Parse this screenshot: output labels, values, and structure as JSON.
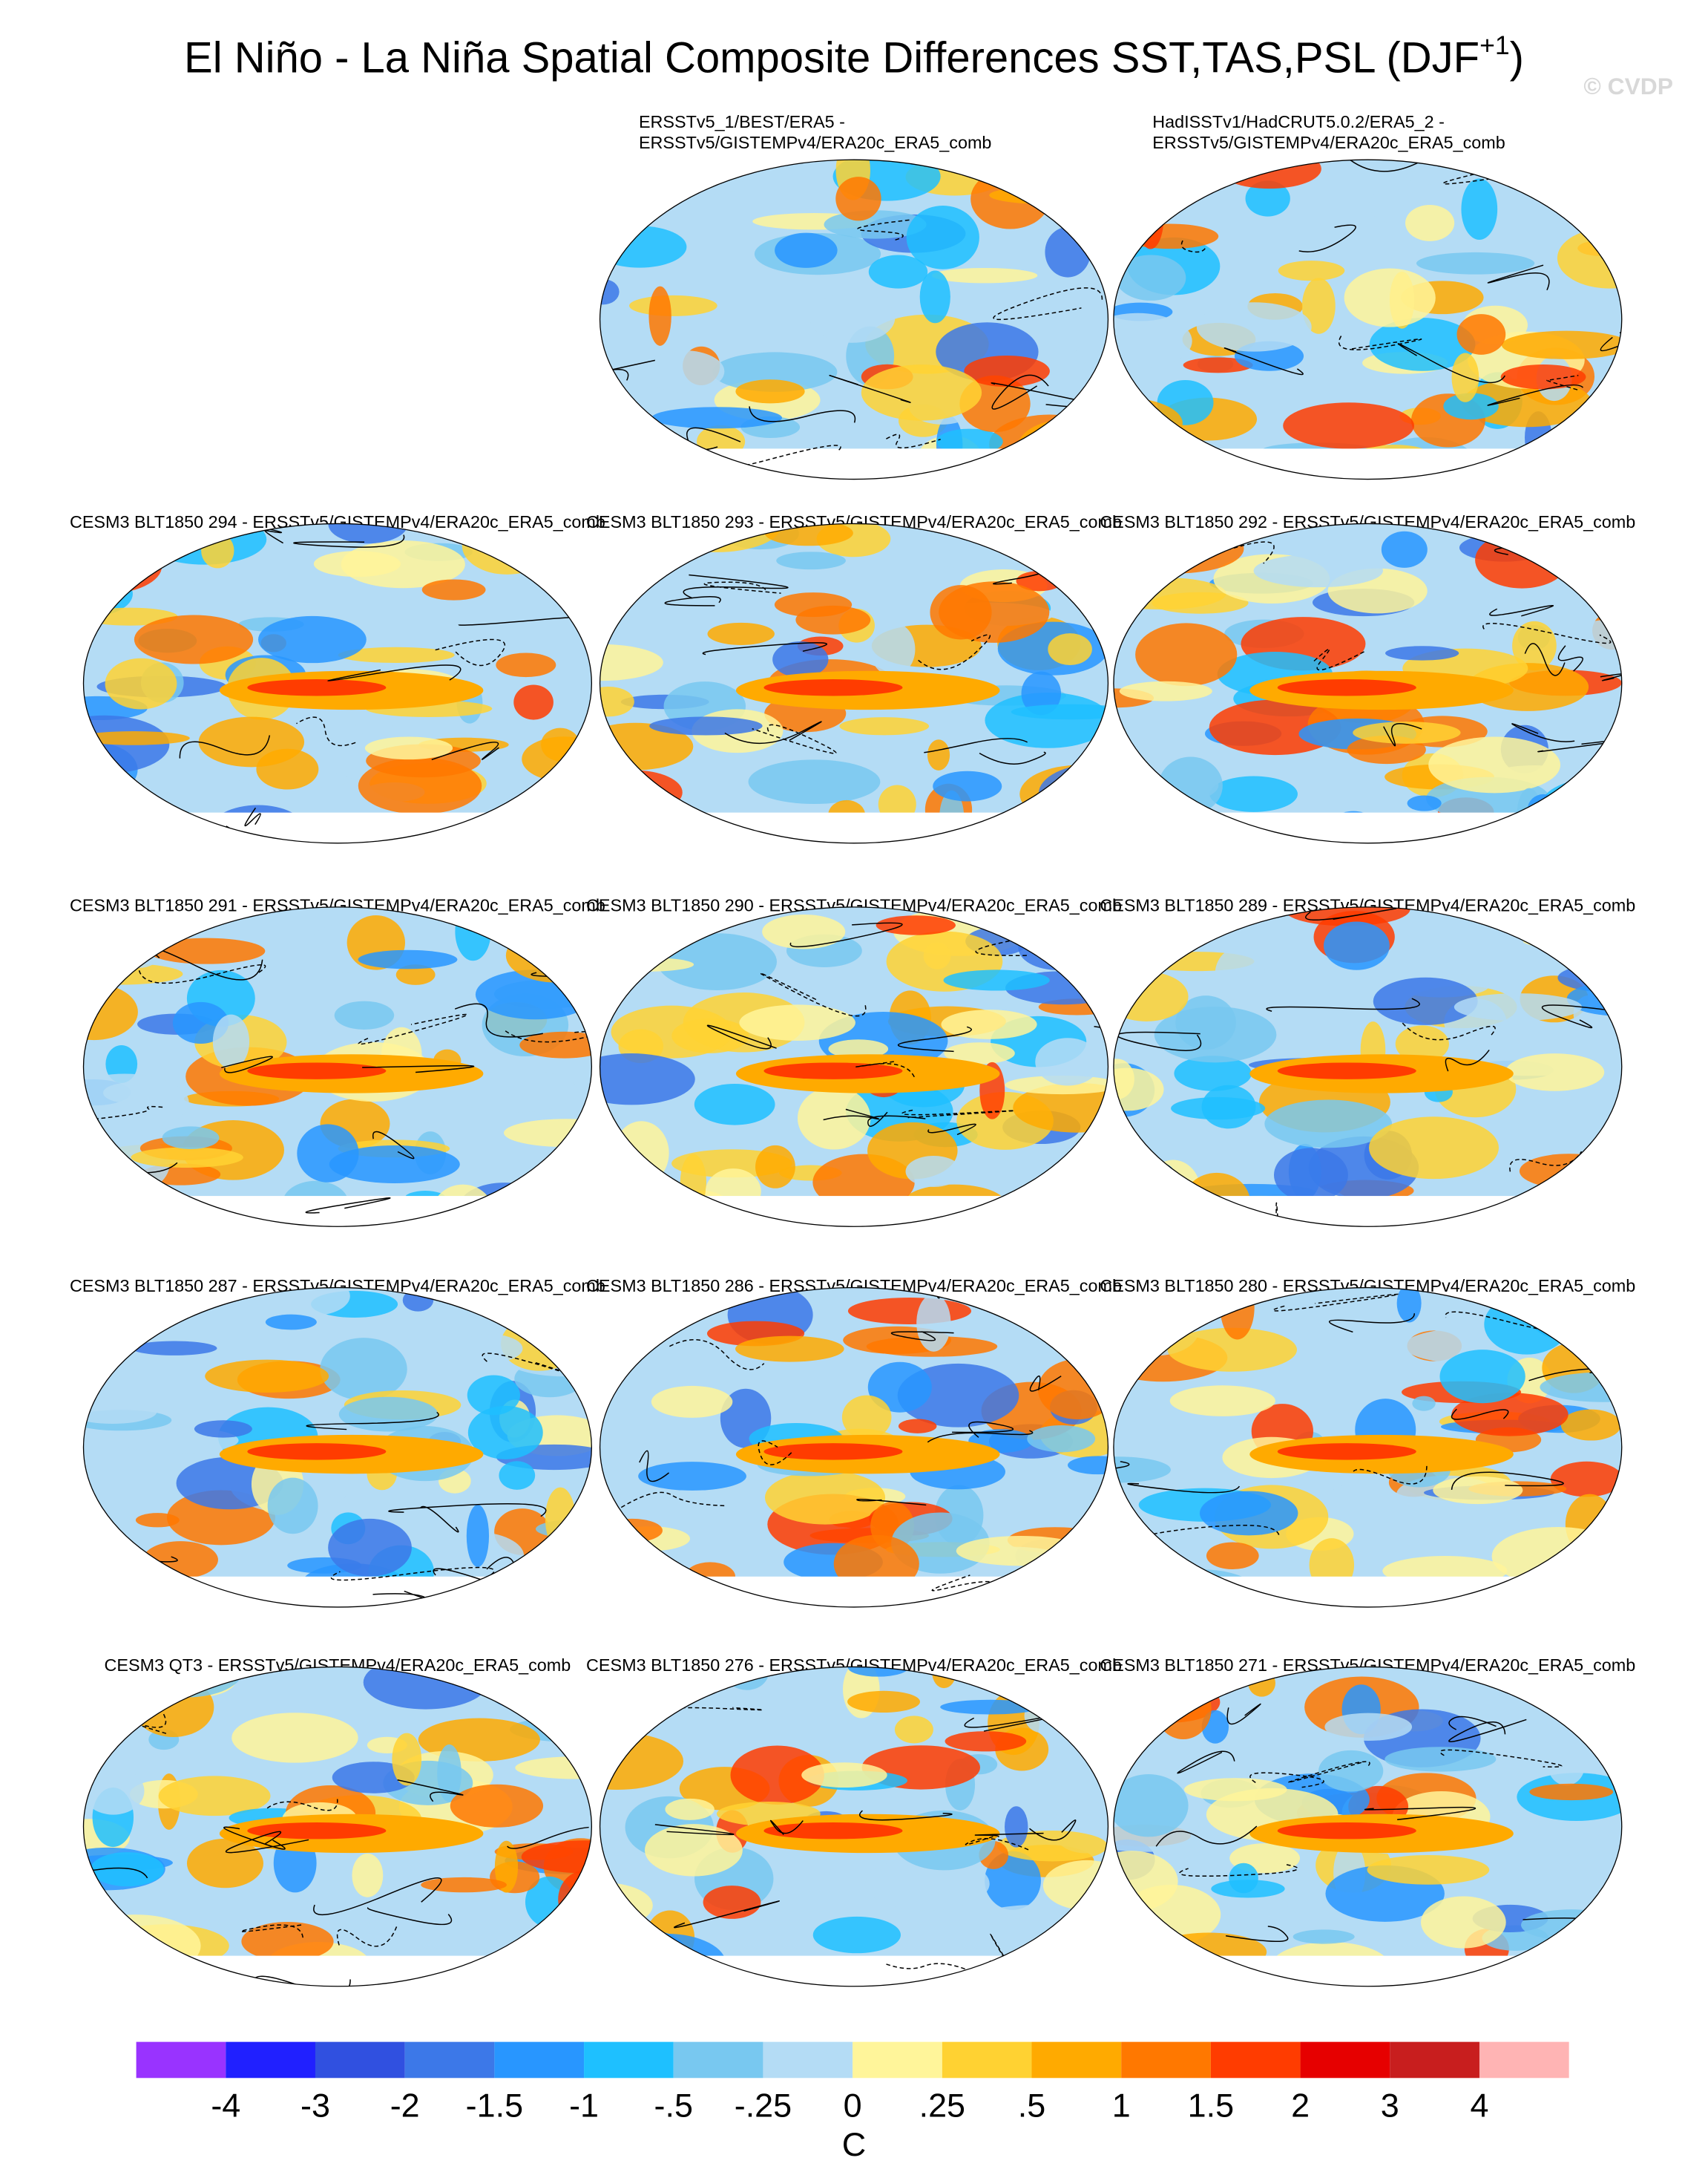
{
  "title": {
    "text": "El Niño - La Niña Spatial Composite Differences SST,TAS,PSL (DJF",
    "superscript": "+1",
    "suffix": ")"
  },
  "watermark": "© CVDP",
  "panels": [
    {
      "title": [
        "ERSSTv5_1/BEST/ERA5 -",
        "ERSSTv5/GISTEMPv4/ERA20c_ERA5_comb"
      ]
    },
    {
      "title": [
        "HadISSTv1/HadCRUT5.0.2/ERA5_2 -",
        "ERSSTv5/GISTEMPv4/ERA20c_ERA5_comb"
      ]
    },
    {
      "title": [
        "CESM3 BLT1850 294 - ERSSTv5/GISTEMPv4/ERA20c_ERA5_comb"
      ]
    },
    {
      "title": [
        "CESM3 BLT1850 293 - ERSSTv5/GISTEMPv4/ERA20c_ERA5_comb"
      ]
    },
    {
      "title": [
        "CESM3 BLT1850 292 - ERSSTv5/GISTEMPv4/ERA20c_ERA5_comb"
      ]
    },
    {
      "title": [
        "CESM3 BLT1850 291 - ERSSTv5/GISTEMPv4/ERA20c_ERA5_comb"
      ]
    },
    {
      "title": [
        "CESM3 BLT1850 290 - ERSSTv5/GISTEMPv4/ERA20c_ERA5_comb"
      ]
    },
    {
      "title": [
        "CESM3 BLT1850 289 - ERSSTv5/GISTEMPv4/ERA20c_ERA5_comb"
      ]
    },
    {
      "title": [
        "CESM3 BLT1850 287 - ERSSTv5/GISTEMPv4/ERA20c_ERA5_comb"
      ]
    },
    {
      "title": [
        "CESM3 BLT1850 286 - ERSSTv5/GISTEMPv4/ERA20c_ERA5_comb"
      ]
    },
    {
      "title": [
        "CESM3 BLT1850 280 - ERSSTv5/GISTEMPv4/ERA20c_ERA5_comb"
      ]
    },
    {
      "title": [
        "CESM3 QT3 - ERSSTv5/GISTEMPv4/ERA20c_ERA5_comb"
      ]
    },
    {
      "title": [
        "CESM3 BLT1850 276 - ERSSTv5/GISTEMPv4/ERA20c_ERA5_comb"
      ]
    },
    {
      "title": [
        "CESM3 BLT1850 271 - ERSSTv5/GISTEMPv4/ERA20c_ERA5_comb"
      ]
    }
  ],
  "colorbar": {
    "labels": [
      "-4",
      "-3",
      "-2",
      "-1.5",
      "-1",
      "-.5",
      "-.25",
      "0",
      ".25",
      ".5",
      "1",
      "1.5",
      "2",
      "3",
      "4"
    ],
    "colors": [
      "#9933ff",
      "#2020ff",
      "#3050e0",
      "#3c78e8",
      "#2896ff",
      "#1ec0ff",
      "#78c8f0",
      "#b4dcf5",
      "#fff59a",
      "#ffd232",
      "#ffaa00",
      "#ff7800",
      "#ff3c00",
      "#e60000",
      "#c81e1e",
      "#ffb4b4"
    ],
    "unit": "C"
  }
}
